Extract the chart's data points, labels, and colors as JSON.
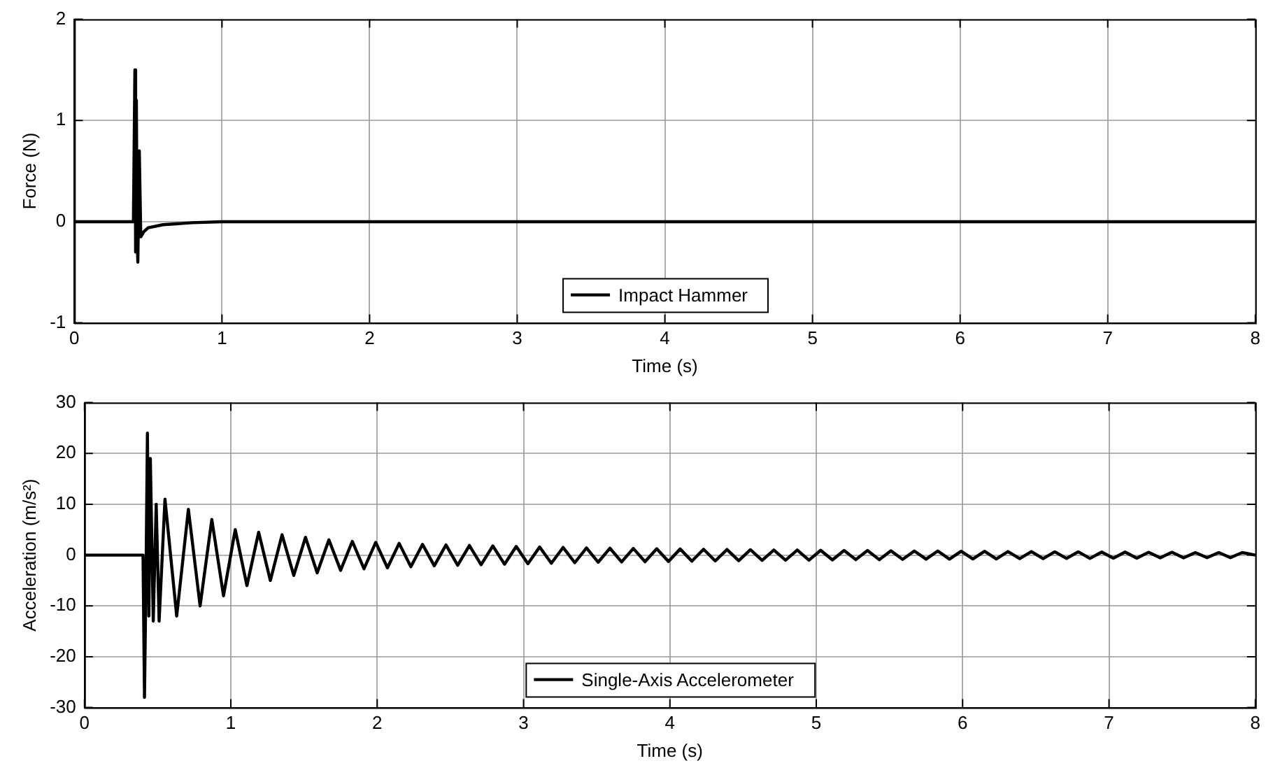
{
  "chart_data": [
    {
      "type": "line",
      "xlabel": "Time (s)",
      "ylabel": "Force (N)",
      "xlim": [
        0,
        8
      ],
      "xticks": [
        0,
        1,
        2,
        3,
        4,
        5,
        6,
        7,
        8
      ],
      "ylim": [
        -1,
        2
      ],
      "yticks": [
        -1,
        0,
        1,
        2
      ],
      "grid": true,
      "legend": "bottom",
      "marker": "none",
      "line_style": "solid",
      "series": [
        {
          "name": "Impact Hammer",
          "color": "#000000",
          "x": [
            0,
            0.4,
            0.41,
            0.415,
            0.42,
            0.425,
            0.43,
            0.44,
            0.45,
            0.47,
            0.5,
            0.6,
            0.8,
            1,
            8
          ],
          "values": [
            0,
            0,
            1.5,
            -0.3,
            1.2,
            -0.1,
            -0.4,
            0.7,
            -0.15,
            -0.1,
            -0.06,
            -0.03,
            -0.01,
            0,
            0
          ]
        }
      ]
    },
    {
      "type": "line",
      "xlabel": "Time (s)",
      "ylabel": "Acceleration (m/s²)",
      "xlim": [
        0,
        8
      ],
      "xticks": [
        0,
        1,
        2,
        3,
        4,
        5,
        6,
        7,
        8
      ],
      "ylim": [
        -30,
        30
      ],
      "yticks": [
        -30,
        -20,
        -10,
        0,
        10,
        20,
        30
      ],
      "grid": true,
      "legend": "bottom",
      "marker": "none",
      "line_style": "solid",
      "series": [
        {
          "name": "Single-Axis Accelerometer",
          "color": "#000000",
          "x": [
            0,
            0.4,
            0.41,
            0.42,
            0.43,
            0.44,
            0.45,
            0.47,
            0.49,
            0.51,
            0.55,
            0.63,
            0.71,
            0.79,
            0.87,
            0.95,
            1.03,
            1.11,
            1.19,
            1.27,
            1.35,
            1.43,
            1.51,
            1.59,
            1.67,
            1.75,
            1.83,
            1.91,
            1.99,
            2.07,
            2.15,
            2.23,
            2.31,
            2.39,
            2.47,
            2.55,
            2.63,
            2.71,
            2.79,
            2.87,
            2.95,
            3.03,
            3.11,
            3.19,
            3.27,
            3.35,
            3.43,
            3.51,
            3.59,
            3.67,
            3.75,
            3.83,
            3.91,
            3.99,
            4.07,
            4.15,
            4.23,
            4.31,
            4.39,
            4.47,
            4.55,
            4.63,
            4.71,
            4.79,
            4.87,
            4.95,
            5.03,
            5.11,
            5.19,
            5.27,
            5.35,
            5.43,
            5.51,
            5.59,
            5.67,
            5.75,
            5.83,
            5.91,
            5.99,
            6.07,
            6.15,
            6.23,
            6.31,
            6.39,
            6.47,
            6.55,
            6.63,
            6.71,
            6.79,
            6.87,
            6.95,
            7.03,
            7.11,
            7.19,
            7.27,
            7.35,
            7.43,
            7.51,
            7.59,
            7.67,
            7.75,
            7.83,
            7.91,
            8
          ],
          "values": [
            0,
            0,
            -28,
            -5,
            24,
            -12,
            19,
            -13,
            10,
            -13,
            11,
            -12,
            9,
            -10,
            7,
            -8,
            5,
            -6,
            4.5,
            -5,
            4,
            -4,
            3.5,
            -3.5,
            3,
            -3,
            2.7,
            -2.7,
            2.5,
            -2.5,
            2.3,
            -2.3,
            2.1,
            -2.1,
            2,
            -2,
            1.9,
            -1.9,
            1.8,
            -1.8,
            1.7,
            -1.7,
            1.6,
            -1.6,
            1.5,
            -1.5,
            1.4,
            -1.4,
            1.35,
            -1.35,
            1.3,
            -1.3,
            1.25,
            -1.25,
            1.2,
            -1.2,
            1.15,
            -1.15,
            1.1,
            -1.1,
            1.05,
            -1.05,
            1,
            -1,
            1,
            -1,
            0.95,
            -0.95,
            0.9,
            -0.9,
            0.9,
            -0.9,
            0.85,
            -0.85,
            0.8,
            -0.8,
            0.8,
            -0.8,
            0.75,
            -0.75,
            0.75,
            -0.75,
            0.7,
            -0.7,
            0.7,
            -0.7,
            0.65,
            -0.65,
            0.65,
            -0.65,
            0.6,
            -0.6,
            0.6,
            -0.6,
            0.55,
            -0.55,
            0.55,
            -0.55,
            0.5,
            -0.5,
            0.5,
            -0.5,
            0.5,
            0
          ]
        }
      ]
    }
  ]
}
